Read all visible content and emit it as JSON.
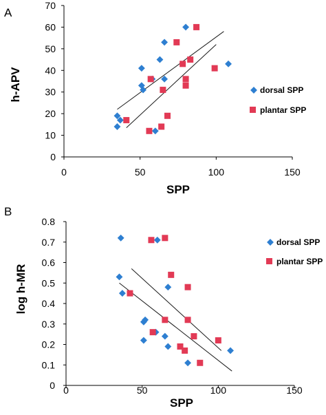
{
  "chart_data": [
    {
      "type": "scatter",
      "panel_label": "A",
      "xlabel": "SPP",
      "ylabel": "h-APV",
      "xlim": [
        0,
        150
      ],
      "ylim": [
        0,
        70
      ],
      "x_ticks": [
        "0",
        "50",
        "100",
        "150"
      ],
      "y_ticks": [
        "0",
        "10",
        "20",
        "30",
        "40",
        "50",
        "60",
        "70"
      ],
      "legend_position": "right",
      "series": [
        {
          "name": "dorsal SPP",
          "marker": "diamond",
          "color": "#2e7fd1",
          "points": [
            [
              35,
              14
            ],
            [
              35,
              19
            ],
            [
              37,
              17
            ],
            [
              51,
              33
            ],
            [
              52,
              31
            ],
            [
              51,
              41
            ],
            [
              58,
              36
            ],
            [
              60,
              12
            ],
            [
              63,
              45
            ],
            [
              66,
              36
            ],
            [
              66,
              53
            ],
            [
              80,
              60
            ],
            [
              108,
              43
            ]
          ]
        },
        {
          "name": "plantar SPP",
          "marker": "square",
          "color": "#e23a55",
          "points": [
            [
              41,
              17
            ],
            [
              56,
              12
            ],
            [
              57,
              36
            ],
            [
              64,
              14
            ],
            [
              65,
              31
            ],
            [
              68,
              19
            ],
            [
              74,
              53
            ],
            [
              78,
              43
            ],
            [
              80,
              33
            ],
            [
              80,
              36
            ],
            [
              83,
              45
            ],
            [
              87,
              60
            ],
            [
              99,
              41
            ]
          ]
        }
      ],
      "trendlines": [
        {
          "series": "dorsal SPP",
          "from": [
            35,
            22
          ],
          "to": [
            105,
            58
          ]
        },
        {
          "series": "plantar SPP",
          "from": [
            41,
            13.5
          ],
          "to": [
            100,
            52
          ]
        }
      ]
    },
    {
      "type": "scatter",
      "panel_label": "B",
      "xlabel": "SPP",
      "ylabel": "log h-MR",
      "xlim": [
        0,
        150
      ],
      "ylim": [
        0,
        0.8
      ],
      "x_ticks": [
        "0",
        "50",
        "100",
        "150"
      ],
      "y_ticks": [
        "0",
        "0.1",
        "0.2",
        "0.3",
        "0.4",
        "0.5",
        "0.6",
        "0.7",
        "0.8"
      ],
      "legend_position": "right",
      "series": [
        {
          "name": "dorsal SPP",
          "marker": "diamond",
          "color": "#2e7fd1",
          "points": [
            [
              36,
              0.72
            ],
            [
              35,
              0.53
            ],
            [
              37,
              0.45
            ],
            [
              51,
              0.31
            ],
            [
              51,
              0.22
            ],
            [
              52,
              0.32
            ],
            [
              60,
              0.71
            ],
            [
              59,
              0.26
            ],
            [
              65,
              0.24
            ],
            [
              67,
              0.19
            ],
            [
              67,
              0.48
            ],
            [
              80,
              0.11
            ],
            [
              108,
              0.17
            ]
          ]
        },
        {
          "name": "plantar SPP",
          "marker": "square",
          "color": "#e23a55",
          "points": [
            [
              42,
              0.45
            ],
            [
              56,
              0.71
            ],
            [
              57,
              0.26
            ],
            [
              65,
              0.72
            ],
            [
              65,
              0.32
            ],
            [
              69,
              0.54
            ],
            [
              75,
              0.19
            ],
            [
              78,
              0.17
            ],
            [
              80,
              0.48
            ],
            [
              80,
              0.32
            ],
            [
              84,
              0.24
            ],
            [
              88,
              0.11
            ],
            [
              100,
              0.22
            ]
          ]
        }
      ],
      "trendlines": [
        {
          "series": "dorsal SPP",
          "from": [
            35,
            0.5
          ],
          "to": [
            109,
            0.07
          ]
        },
        {
          "series": "plantar SPP",
          "from": [
            43,
            0.57
          ],
          "to": [
            102,
            0.17
          ]
        }
      ]
    }
  ]
}
